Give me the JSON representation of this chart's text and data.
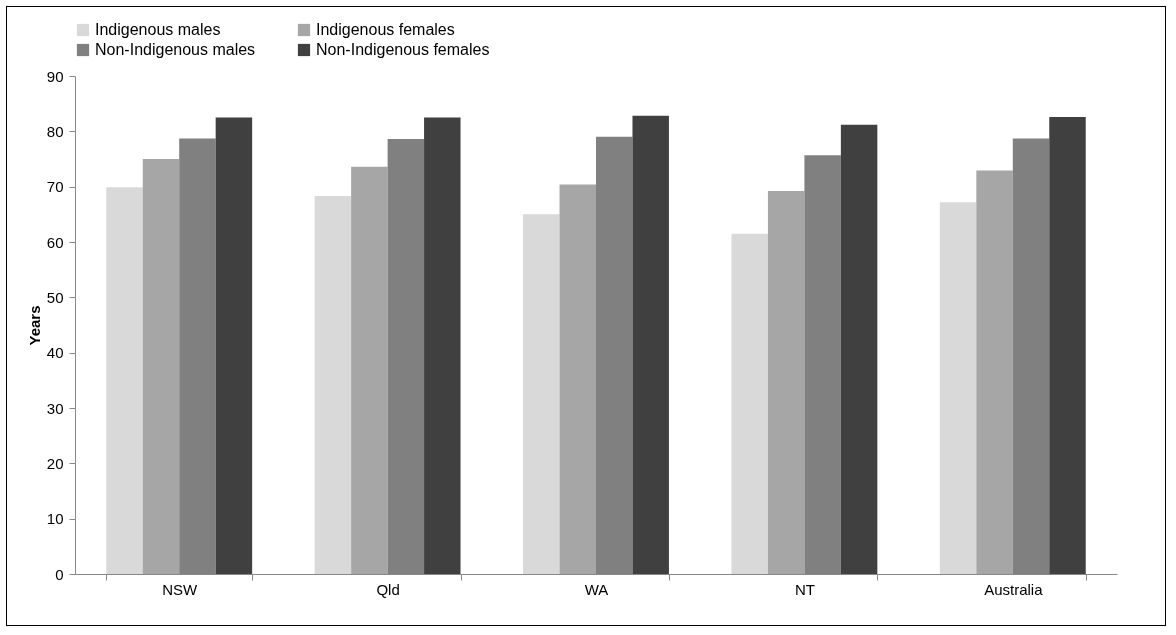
{
  "chart_data": {
    "type": "bar",
    "ylabel": "Years",
    "categories": [
      "NSW",
      "Qld",
      "WA",
      "NT",
      "Australia"
    ],
    "series": [
      {
        "name": "Indigenous males",
        "color": "#d9d9d9",
        "values": [
          69.9,
          68.3,
          65.0,
          61.5,
          67.2
        ]
      },
      {
        "name": "Indigenous females",
        "color": "#a6a6a6",
        "values": [
          75.0,
          73.6,
          70.4,
          69.2,
          72.9
        ]
      },
      {
        "name": "Non-Indigenous males",
        "color": "#808080",
        "values": [
          78.7,
          78.6,
          79.0,
          75.7,
          78.7
        ]
      },
      {
        "name": "Non-Indigenous females",
        "color": "#404040",
        "values": [
          82.5,
          82.5,
          82.8,
          81.2,
          82.6
        ]
      }
    ],
    "ylim": [
      0,
      90
    ],
    "yticks": [
      0,
      10,
      20,
      30,
      40,
      50,
      60,
      70,
      80,
      90
    ],
    "grid": false,
    "legend": "top"
  }
}
